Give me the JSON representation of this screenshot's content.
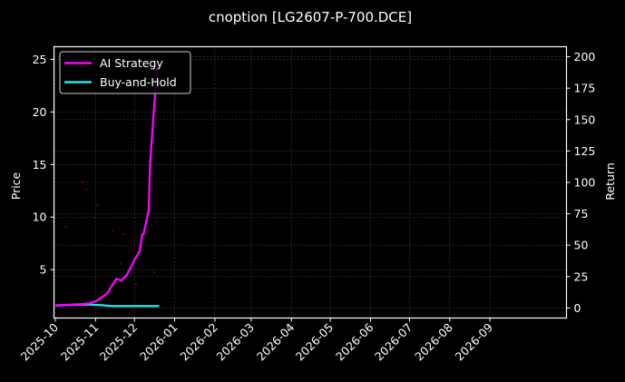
{
  "chart_data": {
    "type": "line",
    "title": "cnoption [LG2607-P-700.DCE]",
    "xlabel": "",
    "ylabel": "Price",
    "ylabel_right": "Return",
    "x_ticks": [
      "2025-10",
      "2025-11",
      "2025-12",
      "2026-01",
      "2026-02",
      "2026-03",
      "2026-04",
      "2026-05",
      "2026-06",
      "2026-07",
      "2026-08",
      "2026-09"
    ],
    "y_left_ticks": [
      5,
      10,
      15,
      20,
      25
    ],
    "y_left_range": [
      0.4,
      26.2
    ],
    "y_right_ticks": [
      0,
      25,
      50,
      75,
      100,
      125,
      150,
      175,
      200
    ],
    "y_right_range": [
      -8,
      208
    ],
    "grid": true,
    "legend_position": "upper left",
    "series": [
      {
        "name": "AI Strategy",
        "axis": "right",
        "color": "#ff00ff",
        "x": [
          "2025-10-01",
          "2025-10-20",
          "2025-10-27",
          "2025-11-02",
          "2025-11-06",
          "2025-11-10",
          "2025-11-13",
          "2025-11-17",
          "2025-11-21",
          "2025-11-22",
          "2025-11-25",
          "2025-11-28",
          "2025-12-01",
          "2025-12-05",
          "2025-12-07",
          "2025-12-08",
          "2025-12-12",
          "2025-12-13",
          "2025-12-16",
          "2025-12-19",
          "2025-12-20"
        ],
        "values": [
          2,
          3,
          3.6,
          5.8,
          8.7,
          11.6,
          16.7,
          23.2,
          21.8,
          23.2,
          26.1,
          31.9,
          38.4,
          44.9,
          58.6,
          58.6,
          78.3,
          114.5,
          158,
          197.8,
          198
        ]
      },
      {
        "name": "Buy-and-Hold",
        "axis": "right",
        "color": "#22e5f0",
        "x": [
          "2025-10-01",
          "2025-10-20",
          "2025-10-27",
          "2025-11-06",
          "2025-11-13",
          "2025-12-20"
        ],
        "values": [
          2,
          2.7,
          2.8,
          2.2,
          1.5,
          1.5
        ]
      }
    ]
  },
  "legend": {
    "items": [
      {
        "label": "AI Strategy",
        "color": "#ff00ff"
      },
      {
        "label": "Buy-and-Hold",
        "color": "#22e5f0"
      }
    ]
  },
  "colors": {
    "background": "#000000",
    "axes": "#ffffff",
    "grid": "#444444",
    "scatter": "#5a0010"
  }
}
